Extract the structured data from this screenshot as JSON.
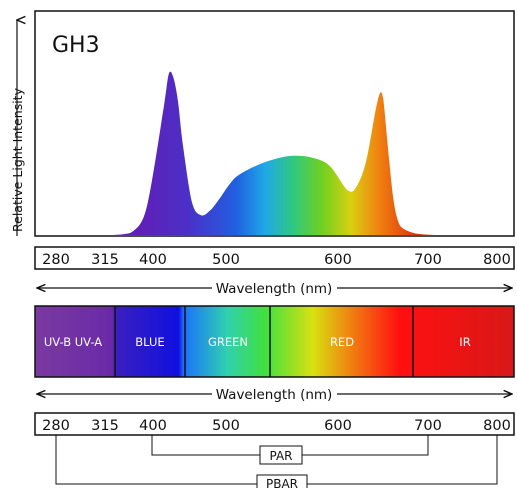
{
  "chart_data": {
    "type": "area",
    "title": "GH3",
    "ylabel": "Relative Light Intensity",
    "xlabel": "Wavelength (nm)",
    "x": [
      280,
      300,
      315,
      330,
      345,
      360,
      375,
      385,
      395,
      402,
      410,
      420,
      425,
      430,
      435,
      440,
      450,
      460,
      470,
      480,
      490,
      500,
      520,
      540,
      560,
      580,
      600,
      620,
      630,
      640,
      650,
      655,
      658,
      660,
      665,
      670,
      675,
      680,
      690,
      700,
      720,
      750,
      800
    ],
    "y": [
      0,
      0,
      0,
      0,
      0,
      0,
      0.005,
      0.02,
      0.08,
      0.2,
      0.45,
      0.8,
      0.98,
      0.95,
      0.8,
      0.55,
      0.2,
      0.12,
      0.15,
      0.22,
      0.3,
      0.36,
      0.42,
      0.46,
      0.48,
      0.47,
      0.42,
      0.27,
      0.3,
      0.45,
      0.75,
      0.86,
      0.84,
      0.75,
      0.45,
      0.2,
      0.08,
      0.04,
      0.015,
      0.005,
      0,
      0,
      0
    ],
    "xlim": [
      280,
      800
    ],
    "ylim": [
      0,
      1
    ],
    "ticks": [
      "280",
      "315",
      "400",
      "500",
      "600",
      "700",
      "800"
    ],
    "tick_values": [
      280,
      315,
      400,
      500,
      600,
      700,
      800
    ]
  },
  "axis_label_top": "Wavelength (nm)",
  "axis_label_bottom": "Wavelength (nm)",
  "bands": [
    {
      "label": "UV-B UV-A",
      "color_from": "#6f3a9a",
      "color_to": "#6a3595"
    },
    {
      "label": "BLUE",
      "color_from": "#3a1fc0",
      "color_to": "#1010e0"
    },
    {
      "label": "GREEN",
      "color_from": "#1a70ff",
      "color_to": "#30d0a0"
    },
    {
      "label": "RED",
      "color_from": "#50e020",
      "color_to": "#ff2010"
    },
    {
      "label": "IR",
      "color_from": "#e01818",
      "color_to": "#d81818"
    }
  ],
  "ranges": [
    {
      "label": "PAR"
    },
    {
      "label": "PBAR"
    }
  ]
}
